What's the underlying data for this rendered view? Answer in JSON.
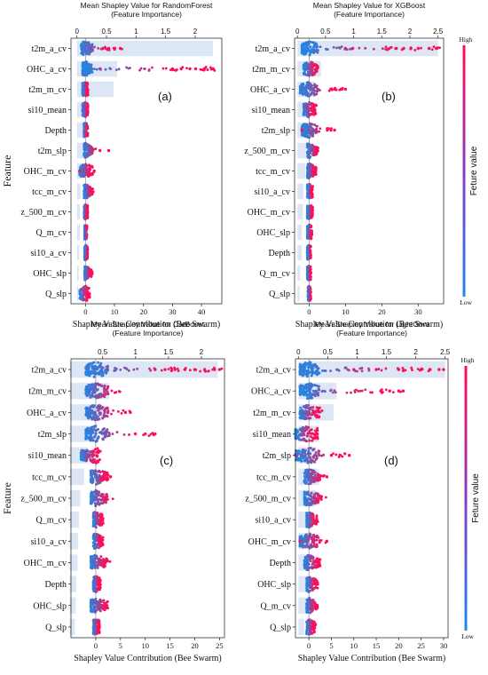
{
  "colors": {
    "bar": "#dce6f5",
    "low": "#1e88e5",
    "high": "#ff0d57",
    "axis": "#333333",
    "zero_line": "#999999"
  },
  "colorbar": {
    "label": "Feture value",
    "high": "High",
    "low": "Low"
  },
  "panels": [
    {
      "top_title": "Mean Shapley Value for RandomForest",
      "top_subtitle": "(Feature Importance)",
      "panel_label": "(a)",
      "xlabel": "Shapley Value Contribution (Bee Swarm)",
      "ylabel": "Feature",
      "has_colorbar": false
    },
    {
      "top_title": "Mean Shapley Value for XGBoost",
      "top_subtitle": "(Feature Importance)",
      "panel_label": "(b)",
      "xlabel": "Shapley Value Contribution (Bee Swarm)",
      "ylabel": "",
      "has_colorbar": true
    },
    {
      "top_title": "Mean Shapley Value for CatBoost",
      "top_subtitle": "(Feature Importance)",
      "panel_label": "(c)",
      "xlabel": "Shapley Value Contribution (Bee Swarm)",
      "ylabel": "Feature",
      "has_colorbar": false
    },
    {
      "top_title": "Mean Shapley Value for LightGbm",
      "top_subtitle": "(Feature Importance)",
      "panel_label": "(d)",
      "xlabel": "Shapley Value Contribution (Bee Swarm)",
      "ylabel": "",
      "has_colorbar": true
    }
  ],
  "chart_data": [
    {
      "type": "bar",
      "title": "Mean Shapley Value for RandomForest",
      "features": [
        "t2m_a_cv",
        "OHC_a_cv",
        "t2m_m_cv",
        "si10_mean",
        "Depth",
        "t2m_slp",
        "OHC_m_cv",
        "tcc_m_cv",
        "z_500_m_cv",
        "Q_m_cv",
        "si10_a_cv",
        "OHC_slp",
        "Q_slp"
      ],
      "importance": [
        2.3,
        0.68,
        0.62,
        0.13,
        0.1,
        0.12,
        0.08,
        0.06,
        0.05,
        0.05,
        0.04,
        0.03,
        0.02
      ],
      "importance_ticks": [
        0,
        0.5,
        1.0,
        1.5,
        2.0
      ],
      "importance_range": [
        -0.1,
        2.45
      ],
      "swarm_ticks": [
        0,
        10,
        20,
        30,
        40
      ],
      "swarm_range": [
        -5,
        47
      ],
      "swarm": [
        {
          "min": -1.5,
          "max": 13,
          "outliers": [
            6,
            8,
            10,
            12
          ]
        },
        {
          "min": -1,
          "max": 45,
          "outliers": [
            5,
            30,
            33,
            36,
            38,
            41,
            44
          ]
        },
        {
          "min": -1,
          "max": 1
        },
        {
          "min": -1,
          "max": 1
        },
        {
          "min": -0.5,
          "max": 0.8
        },
        {
          "min": -0.5,
          "max": 5,
          "outliers": [
            5,
            8
          ]
        },
        {
          "min": -2,
          "max": 3,
          "outliers": [
            -2,
            3
          ]
        },
        {
          "min": -0.5,
          "max": 3
        },
        {
          "min": -0.5,
          "max": 0.8
        },
        {
          "min": -0.3,
          "max": 0.5
        },
        {
          "min": -0.3,
          "max": 0.8
        },
        {
          "min": -0.3,
          "max": 2.5
        },
        {
          "min": -2,
          "max": 1.5
        }
      ]
    },
    {
      "type": "bar",
      "title": "Mean Shapley Value for XGBoost",
      "features": [
        "t2m_a_cv",
        "t2m_m_cv",
        "OHC_a_cv",
        "si10_mean",
        "t2m_slp",
        "z_500_m_cv",
        "tcc_m_cv",
        "si10_a_cv",
        "OHC_m_cv",
        "OHC_slp",
        "Depth",
        "Q_m_cv",
        "Q_slp"
      ],
      "importance": [
        2.5,
        0.42,
        0.3,
        0.2,
        0.28,
        0.15,
        0.14,
        0.11,
        0.1,
        0.08,
        0.08,
        0.05,
        0.04
      ],
      "importance_ticks": [
        0,
        0.5,
        1.0,
        1.5,
        2.0,
        2.5
      ],
      "importance_range": [
        -0.05,
        2.6
      ],
      "swarm_ticks": [
        0,
        10,
        20,
        30
      ],
      "swarm_range": [
        -4,
        37
      ],
      "swarm": [
        {
          "min": -2,
          "max": 37,
          "outliers": [
            10,
            12,
            24,
            26,
            28,
            30,
            33,
            35
          ]
        },
        {
          "min": -1.5,
          "max": 3
        },
        {
          "min": -2.5,
          "max": 10,
          "outliers": [
            7,
            9,
            10
          ]
        },
        {
          "min": -1.5,
          "max": 2
        },
        {
          "min": -2,
          "max": 7,
          "outliers": [
            -2,
            5,
            6,
            7
          ]
        },
        {
          "min": -0.5,
          "max": 3
        },
        {
          "min": -0.5,
          "max": 2
        },
        {
          "min": -0.5,
          "max": 1
        },
        {
          "min": -0.5,
          "max": 1
        },
        {
          "min": -0.5,
          "max": 0.8
        },
        {
          "min": -0.5,
          "max": 0.5
        },
        {
          "min": -0.5,
          "max": 0.5
        },
        {
          "min": -0.3,
          "max": 0.5
        }
      ]
    },
    {
      "type": "bar",
      "title": "Mean Shapley Value for CatBoost",
      "features": [
        "t2m_a_cv",
        "t2m_m_cv",
        "OHC_a_cv",
        "t2m_slp",
        "si10_mean",
        "tcc_m_cv",
        "z_500_m_cv",
        "Q_m_cv",
        "si10_a_cv",
        "OHC_m_cv",
        "Depth",
        "OHC_slp",
        "Q_slp"
      ],
      "importance": [
        2.25,
        0.6,
        0.5,
        0.38,
        0.28,
        0.22,
        0.16,
        0.14,
        0.13,
        0.12,
        0.1,
        0.09,
        0.08
      ],
      "importance_ticks": [
        0.5,
        1.0,
        1.5,
        2.0
      ],
      "importance_range": [
        0.02,
        2.35
      ],
      "swarm_ticks": [
        0,
        5,
        10,
        15,
        20,
        25
      ],
      "swarm_range": [
        -5,
        26
      ],
      "swarm": [
        {
          "min": -2,
          "max": 26,
          "outliers": [
            12,
            14,
            16,
            18,
            20,
            22,
            24,
            25
          ]
        },
        {
          "min": -2,
          "max": 6
        },
        {
          "min": -2,
          "max": 7,
          "outliers": [
            6,
            7
          ]
        },
        {
          "min": -2,
          "max": 12,
          "outliers": [
            8,
            10,
            12
          ]
        },
        {
          "min": -3,
          "max": 1
        },
        {
          "min": -1,
          "max": 3,
          "outliers": [
            3
          ]
        },
        {
          "min": -1,
          "max": 4
        },
        {
          "min": -0.5,
          "max": 1.5
        },
        {
          "min": -0.5,
          "max": 1.5
        },
        {
          "min": -1,
          "max": 3
        },
        {
          "min": -0.5,
          "max": 1
        },
        {
          "min": -1,
          "max": 3
        },
        {
          "min": -0.5,
          "max": 0.8
        }
      ]
    },
    {
      "type": "bar",
      "title": "Mean Shapley Value for LightGbm",
      "features": [
        "t2m_a_cv",
        "OHC_a_cv",
        "t2m_m_cv",
        "si10_mean",
        "t2m_slp",
        "tcc_m_cv",
        "z_500_m_cv",
        "si10_a_cv",
        "OHC_m_cv",
        "Depth",
        "OHC_slp",
        "Q_m_cv",
        "Q_slp"
      ],
      "importance": [
        2.5,
        0.65,
        0.6,
        0.35,
        0.3,
        0.35,
        0.3,
        0.22,
        0.2,
        0.18,
        0.15,
        0.12,
        0.1
      ],
      "importance_ticks": [
        0,
        0.5,
        1.0,
        1.5,
        2.0,
        2.5
      ],
      "importance_range": [
        -0.05,
        2.55
      ],
      "swarm_ticks": [
        0,
        5,
        10,
        15,
        20,
        25,
        30
      ],
      "swarm_range": [
        -3,
        31
      ],
      "swarm": [
        {
          "min": -2,
          "max": 30,
          "outliers": [
            10,
            15,
            20,
            25,
            27,
            29,
            30
          ]
        },
        {
          "min": -2,
          "max": 21,
          "outliers": [
            16,
            18,
            20,
            21
          ]
        },
        {
          "min": -2,
          "max": 3
        },
        {
          "min": -3,
          "max": 2
        },
        {
          "min": -3,
          "max": 9,
          "outliers": [
            -3,
            5,
            7,
            9
          ]
        },
        {
          "min": -1,
          "max": 4,
          "outliers": [
            4
          ]
        },
        {
          "min": -1,
          "max": 4
        },
        {
          "min": -0.5,
          "max": 2
        },
        {
          "min": -2,
          "max": 4,
          "outliers": [
            -2,
            4
          ]
        },
        {
          "min": -1,
          "max": 3
        },
        {
          "min": -0.5,
          "max": 2
        },
        {
          "min": -0.5,
          "max": 2
        },
        {
          "min": -0.5,
          "max": 1.5
        }
      ]
    }
  ]
}
